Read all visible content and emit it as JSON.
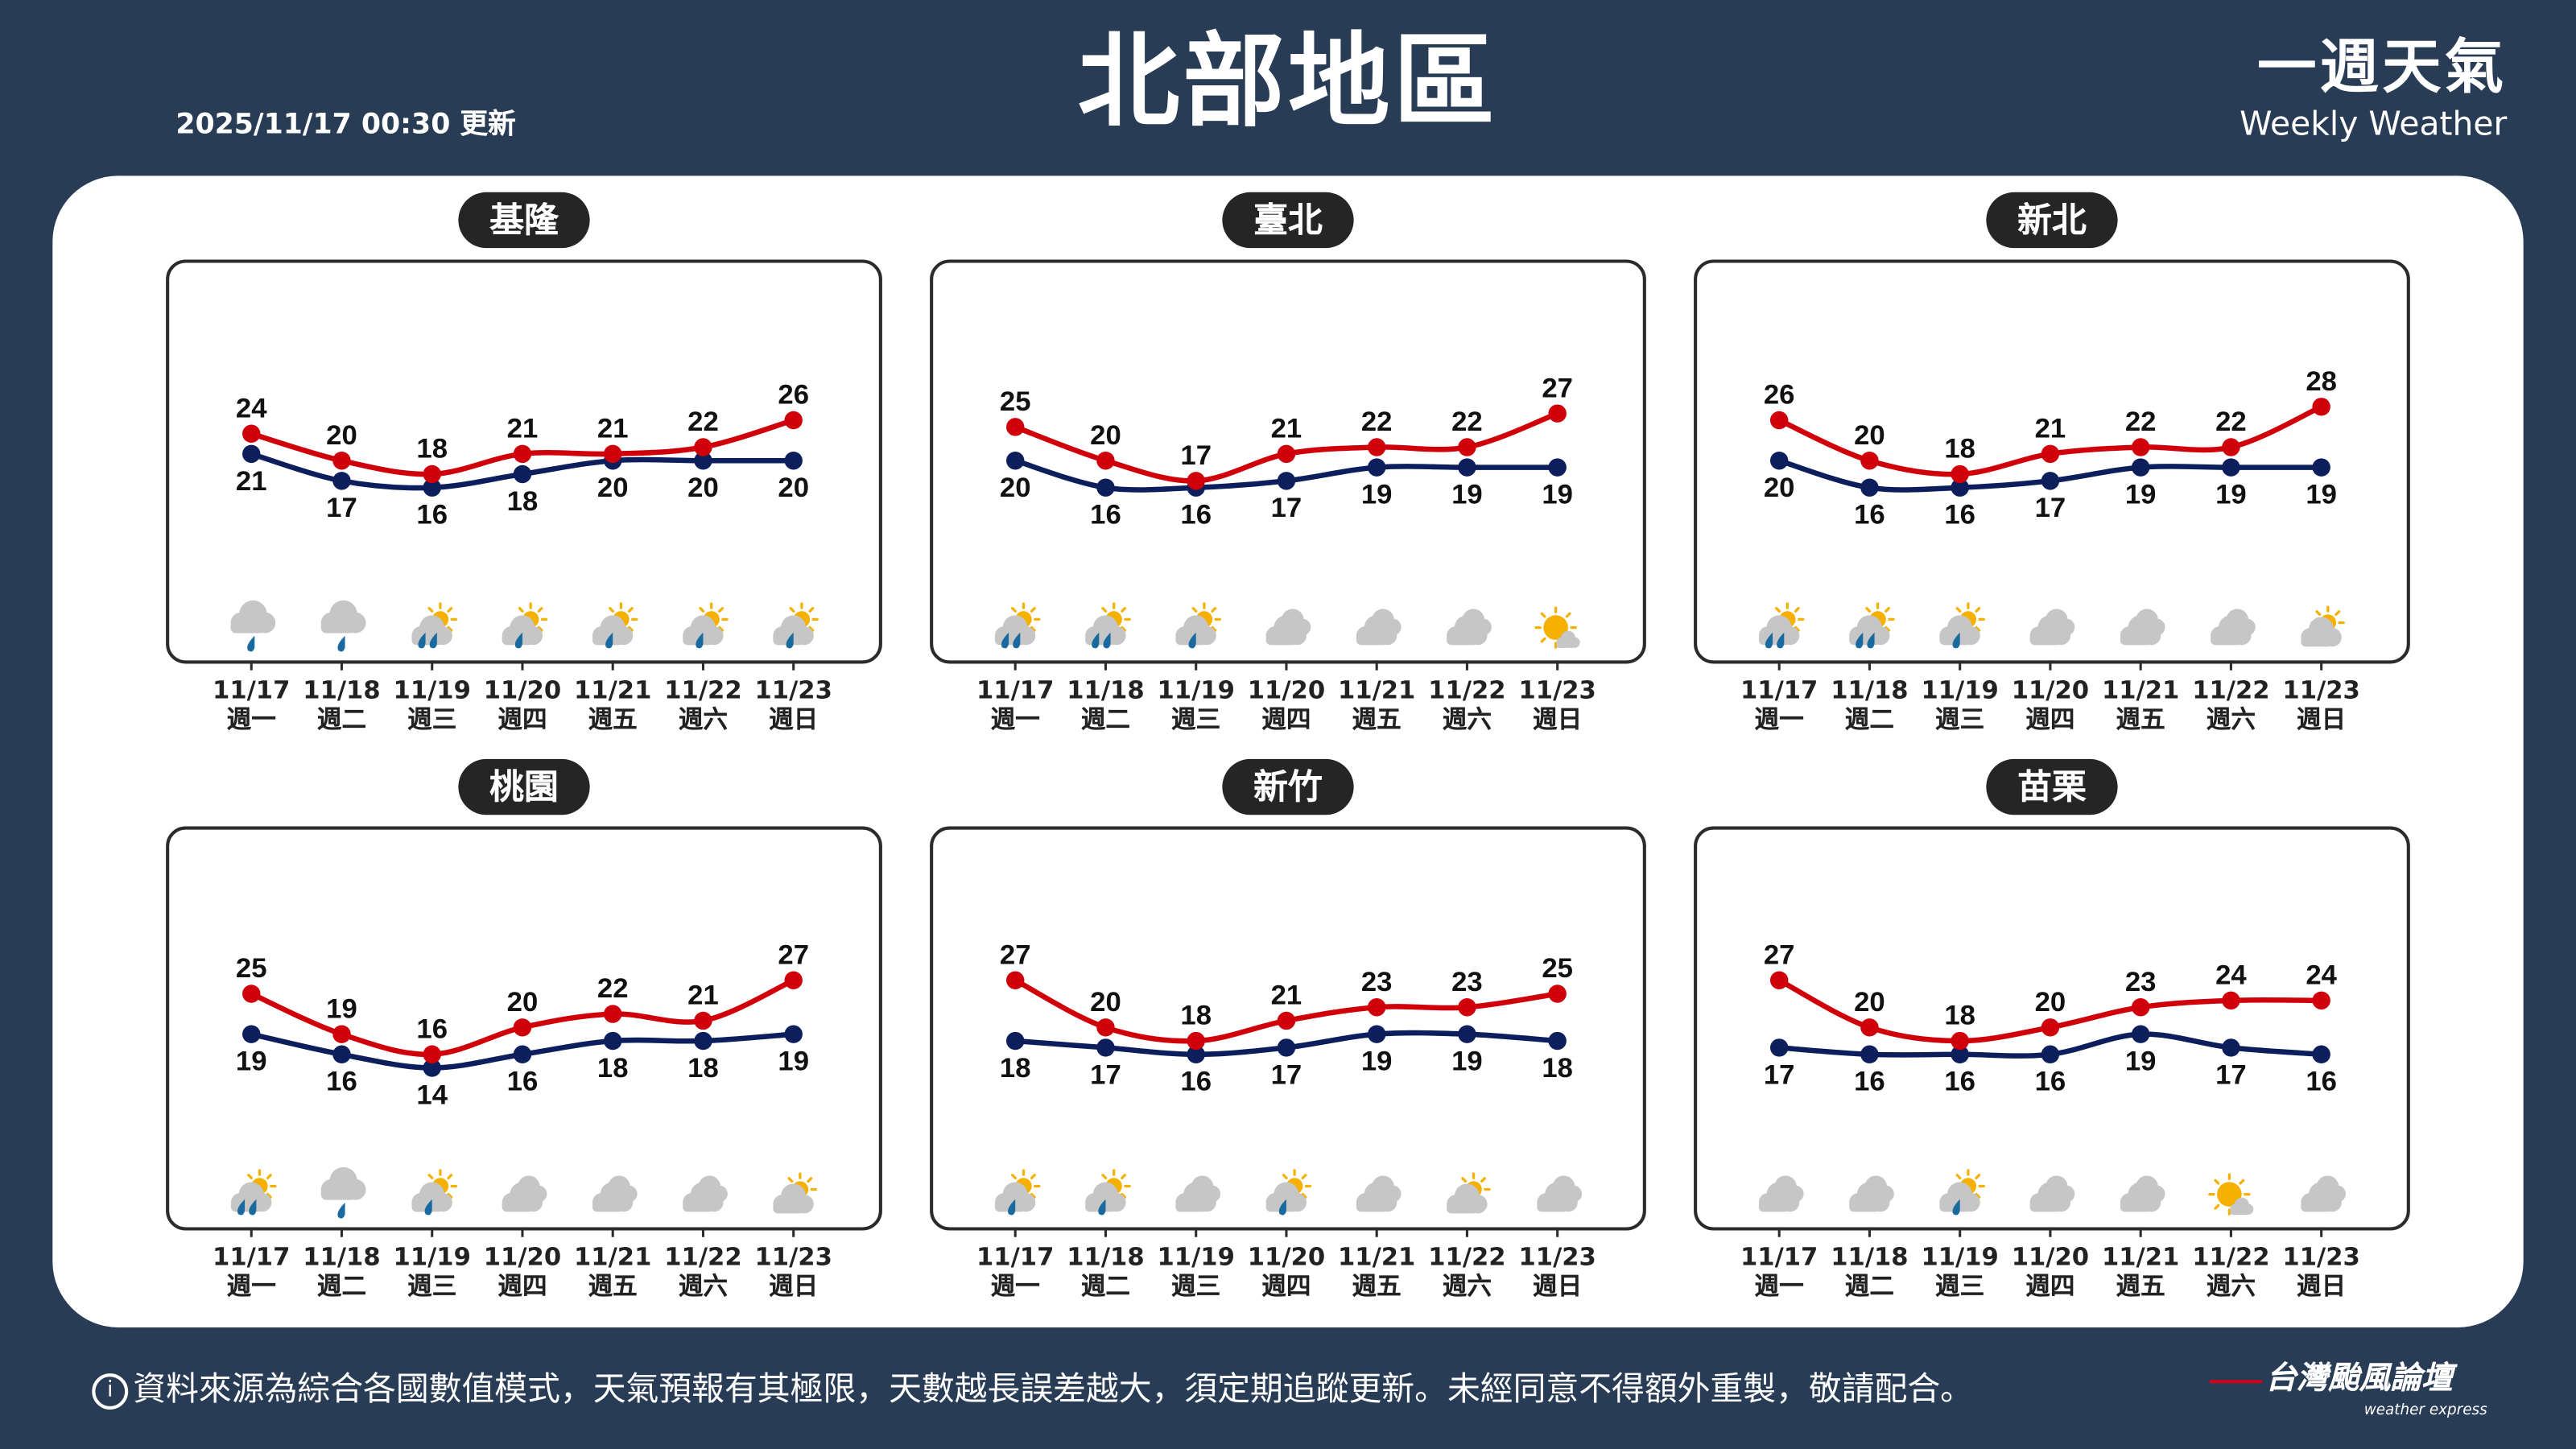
{
  "header": {
    "updated": "2025/11/17 00:30 更新",
    "title": "北部地區",
    "brand_zh": "一週天氣",
    "brand_en": "Weekly Weather"
  },
  "colors": {
    "background": "#293c56",
    "high": "#d0000b",
    "low": "#0c1f5c",
    "pill": "#252525"
  },
  "days": [
    {
      "date": "11/17",
      "weekday": "週一"
    },
    {
      "date": "11/18",
      "weekday": "週二"
    },
    {
      "date": "11/19",
      "weekday": "週三"
    },
    {
      "date": "11/20",
      "weekday": "週四"
    },
    {
      "date": "11/21",
      "weekday": "週五"
    },
    {
      "date": "11/22",
      "weekday": "週六"
    },
    {
      "date": "11/23",
      "weekday": "週日"
    }
  ],
  "regions": [
    {
      "name": "基隆",
      "high": [
        24,
        20,
        18,
        21,
        21,
        22,
        26
      ],
      "low": [
        21,
        17,
        16,
        18,
        20,
        20,
        20
      ],
      "icons": [
        "cloud-rain",
        "cloud-rain",
        "partly-cloudy-rain-heavy",
        "partly-cloudy-rain",
        "partly-cloudy-rain",
        "partly-cloudy-rain",
        "partly-cloudy-rain"
      ]
    },
    {
      "name": "臺北",
      "high": [
        25,
        20,
        17,
        21,
        22,
        22,
        27
      ],
      "low": [
        20,
        16,
        16,
        17,
        19,
        19,
        19
      ],
      "icons": [
        "partly-cloudy-rain-heavy",
        "partly-cloudy-rain-heavy",
        "partly-cloudy-rain",
        "cloudy",
        "cloudy",
        "cloudy",
        "mostly-sunny"
      ]
    },
    {
      "name": "新北",
      "high": [
        26,
        20,
        18,
        21,
        22,
        22,
        28
      ],
      "low": [
        20,
        16,
        16,
        17,
        19,
        19,
        19
      ],
      "icons": [
        "partly-cloudy-rain-heavy",
        "partly-cloudy-rain-heavy",
        "partly-cloudy-rain",
        "cloudy",
        "cloudy",
        "cloudy",
        "partly-cloudy"
      ]
    },
    {
      "name": "桃園",
      "high": [
        25,
        19,
        16,
        20,
        22,
        21,
        27
      ],
      "low": [
        19,
        16,
        14,
        16,
        18,
        18,
        19
      ],
      "icons": [
        "partly-cloudy-rain-heavy",
        "cloud-rain",
        "partly-cloudy-rain",
        "cloudy",
        "cloudy",
        "cloudy",
        "partly-cloudy"
      ]
    },
    {
      "name": "新竹",
      "high": [
        27,
        20,
        18,
        21,
        23,
        23,
        25
      ],
      "low": [
        18,
        17,
        16,
        17,
        19,
        19,
        18
      ],
      "icons": [
        "partly-cloudy-rain",
        "partly-cloudy-rain",
        "cloudy",
        "partly-cloudy-rain",
        "cloudy",
        "partly-cloudy",
        "cloudy"
      ]
    },
    {
      "name": "苗栗",
      "high": [
        27,
        20,
        18,
        20,
        23,
        24,
        24
      ],
      "low": [
        17,
        16,
        16,
        16,
        19,
        17,
        16
      ],
      "icons": [
        "cloudy",
        "cloudy",
        "partly-cloudy-rain",
        "cloudy",
        "cloudy",
        "mostly-sunny",
        "cloudy"
      ]
    }
  ],
  "footer": {
    "info_icon": "i",
    "disclaimer": "資料來源為綜合各國數值模式，天氣預報有其極限，天數越長誤差越大，須定期追蹤更新。未經同意不得額外重製，敬請配合。",
    "logo_zh": "台灣颱風論壇",
    "logo_en": "weather express"
  }
}
